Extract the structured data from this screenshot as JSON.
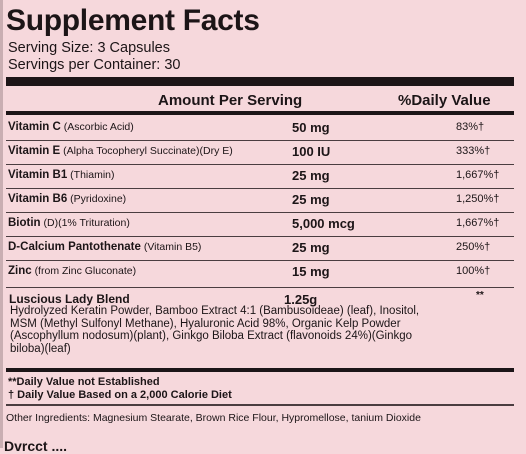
{
  "title": "Supplement Facts",
  "serving_size": "Serving Size: 3 Capsules",
  "servings_per_container": "Servings per Container: 30",
  "header": {
    "amount": "Amount Per Serving",
    "dv": "%Daily Value"
  },
  "nutrients": [
    {
      "name": "Vitamin C",
      "detail": "(Ascorbic Acid)",
      "amount": "50 mg",
      "dv": "83%†"
    },
    {
      "name": "Vitamin E",
      "detail": "(Alpha Tocopheryl Succinate)(Dry E)",
      "amount": "100 IU",
      "dv": "333%†"
    },
    {
      "name": "Vitamin B1",
      "detail": "(Thiamin)",
      "amount": "25 mg",
      "dv": "1,667%†"
    },
    {
      "name": "Vitamin B6",
      "detail": "(Pyridoxine)",
      "amount": "25 mg",
      "dv": "1,250%†"
    },
    {
      "name": "Biotin",
      "detail": "(D)(1% Trituration)",
      "amount": "5,000 mcg",
      "dv": "1,667%†"
    },
    {
      "name": "D-Calcium Pantothenate",
      "detail": "(Vitamin B5)",
      "amount": "25 mg",
      "dv": "250%†"
    },
    {
      "name": "Zinc",
      "detail": "(from Zinc Gluconate)",
      "amount": "15 mg",
      "dv": "100%†"
    }
  ],
  "blend": {
    "name": "Luscious Lady Blend",
    "amount": "1.25g",
    "dv": "**",
    "description": "Hydrolyzed Keratin Powder, Bamboo Extract 4:1 (Bambusoideae) (leaf), Inositol, MSM (Methyl Sulfonyl Methane), Hyaluronic Acid 98%, Organic Kelp Powder (Ascophyllum nodosum)(plant), Ginkgo Biloba Extract (flavonoids 24%)(Ginkgo biloba)(leaf)"
  },
  "footnotes": [
    "**Daily Value not Established",
    "† Daily Value Based on a 2,000 Calorie Diet"
  ],
  "other_ingredients": "Other Ingredients: Magnesium Stearate, Brown Rice Flour, Hypromellose,   tanium Dioxide",
  "cut_text": "Dvrcct ...."
}
